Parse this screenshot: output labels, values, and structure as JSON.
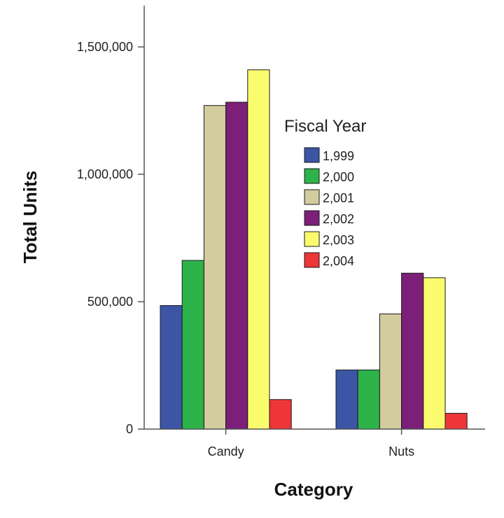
{
  "chart_data": {
    "type": "bar",
    "categories": [
      "Candy",
      "Nuts"
    ],
    "series": [
      {
        "name": "1,999",
        "color": "#3c55a5",
        "values": [
          485000,
          232000
        ]
      },
      {
        "name": "2,000",
        "color": "#2db34a",
        "values": [
          662000,
          232000
        ]
      },
      {
        "name": "2,001",
        "color": "#d2cc9e",
        "values": [
          1270000,
          452000
        ]
      },
      {
        "name": "2,002",
        "color": "#7b1f79",
        "values": [
          1283000,
          612000
        ]
      },
      {
        "name": "2,003",
        "color": "#fbfb6e",
        "values": [
          1410000,
          594000
        ]
      },
      {
        "name": "2,004",
        "color": "#ee3538",
        "values": [
          116000,
          62000
        ]
      }
    ],
    "xlabel": "Category",
    "ylabel": "Total Units",
    "legend_title": "Fiscal Year",
    "ylim": [
      0,
      1650000
    ],
    "yticks": [
      0,
      500000,
      1000000,
      1500000
    ],
    "ytick_labels": [
      "0",
      "500,000",
      "1,000,000",
      "1,500,000"
    ],
    "grid": false,
    "legend_position": "right"
  }
}
